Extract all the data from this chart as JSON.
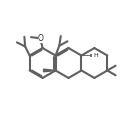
{
  "bg_color": "#ffffff",
  "bond_color": "#606060",
  "text_color": "#222222",
  "lw": 1.5,
  "figsize": [
    1.28,
    1.23
  ],
  "dpi": 100
}
